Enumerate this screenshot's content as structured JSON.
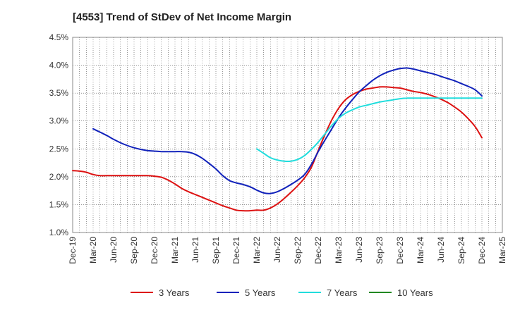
{
  "title": "[4553]  Trend of StDev of Net Income Margin",
  "chart_data": {
    "type": "line",
    "title": "[4553]  Trend of StDev of Net Income Margin",
    "xlabel": "",
    "ylabel": "",
    "ylim": [
      1.0,
      4.5
    ],
    "y_ticks": [
      "1.0%",
      "1.5%",
      "2.0%",
      "2.5%",
      "3.0%",
      "3.5%",
      "4.0%",
      "4.5%"
    ],
    "y_tick_values": [
      1.0,
      1.5,
      2.0,
      2.5,
      3.0,
      3.5,
      4.0,
      4.5
    ],
    "x_ticks": [
      "Dec-19",
      "Mar-20",
      "Jun-20",
      "Sep-20",
      "Dec-20",
      "Mar-21",
      "Jun-21",
      "Sep-21",
      "Dec-21",
      "Mar-22",
      "Jun-22",
      "Sep-22",
      "Dec-22",
      "Mar-23",
      "Jun-23",
      "Sep-23",
      "Dec-23",
      "Mar-24",
      "Jun-24",
      "Sep-24",
      "Dec-24",
      "Mar-25"
    ],
    "grid": true,
    "legend_position": "bottom",
    "series": [
      {
        "name": "3 Years",
        "color": "#dd1111",
        "x": [
          "Dec-19",
          "Jan-20",
          "Feb-20",
          "Mar-20",
          "Apr-20",
          "May-20",
          "Jun-20",
          "Jul-20",
          "Aug-20",
          "Sep-20",
          "Oct-20",
          "Nov-20",
          "Dec-20",
          "Jan-21",
          "Feb-21",
          "Mar-21",
          "Apr-21",
          "May-21",
          "Jun-21",
          "Jul-21",
          "Aug-21",
          "Sep-21",
          "Oct-21",
          "Nov-21",
          "Dec-21",
          "Jan-22",
          "Feb-22",
          "Mar-22",
          "Apr-22",
          "May-22",
          "Jun-22",
          "Jul-22",
          "Aug-22",
          "Sep-22",
          "Oct-22",
          "Nov-22",
          "Dec-22",
          "Jan-23",
          "Feb-23",
          "Mar-23",
          "Apr-23",
          "May-23",
          "Jun-23",
          "Jul-23",
          "Aug-23",
          "Sep-23",
          "Oct-23",
          "Nov-23",
          "Dec-23",
          "Jan-24",
          "Feb-24",
          "Mar-24",
          "Apr-24",
          "May-24",
          "Jun-24",
          "Jul-24",
          "Aug-24",
          "Sep-24",
          "Oct-24",
          "Nov-24",
          "Dec-24"
        ],
        "values": [
          2.11,
          2.1,
          2.08,
          2.04,
          2.02,
          2.02,
          2.02,
          2.02,
          2.02,
          2.02,
          2.02,
          2.02,
          2.01,
          1.99,
          1.94,
          1.87,
          1.79,
          1.73,
          1.68,
          1.63,
          1.58,
          1.53,
          1.48,
          1.44,
          1.4,
          1.39,
          1.39,
          1.4,
          1.4,
          1.44,
          1.51,
          1.61,
          1.72,
          1.84,
          1.98,
          2.17,
          2.47,
          2.76,
          3.02,
          3.23,
          3.38,
          3.47,
          3.53,
          3.57,
          3.59,
          3.61,
          3.61,
          3.6,
          3.59,
          3.56,
          3.53,
          3.51,
          3.48,
          3.44,
          3.39,
          3.33,
          3.25,
          3.16,
          3.04,
          2.9,
          2.7
        ]
      },
      {
        "name": "5 Years",
        "color": "#1122bb",
        "x": [
          "Mar-20",
          "Apr-20",
          "May-20",
          "Jun-20",
          "Jul-20",
          "Aug-20",
          "Sep-20",
          "Oct-20",
          "Nov-20",
          "Dec-20",
          "Jan-21",
          "Feb-21",
          "Mar-21",
          "Apr-21",
          "May-21",
          "Jun-21",
          "Jul-21",
          "Aug-21",
          "Sep-21",
          "Oct-21",
          "Nov-21",
          "Dec-21",
          "Jan-22",
          "Feb-22",
          "Mar-22",
          "Apr-22",
          "May-22",
          "Jun-22",
          "Jul-22",
          "Aug-22",
          "Sep-22",
          "Oct-22",
          "Nov-22",
          "Dec-22",
          "Jan-23",
          "Feb-23",
          "Mar-23",
          "Apr-23",
          "May-23",
          "Jun-23",
          "Jul-23",
          "Aug-23",
          "Sep-23",
          "Oct-23",
          "Nov-23",
          "Dec-23",
          "Jan-24",
          "Feb-24",
          "Mar-24",
          "Apr-24",
          "May-24",
          "Jun-24",
          "Jul-24",
          "Aug-24",
          "Sep-24",
          "Oct-24",
          "Nov-24",
          "Dec-24"
        ],
        "values": [
          2.86,
          2.8,
          2.74,
          2.67,
          2.61,
          2.56,
          2.52,
          2.49,
          2.47,
          2.46,
          2.45,
          2.45,
          2.45,
          2.45,
          2.44,
          2.4,
          2.33,
          2.24,
          2.14,
          2.02,
          1.93,
          1.89,
          1.86,
          1.82,
          1.76,
          1.71,
          1.7,
          1.73,
          1.79,
          1.86,
          1.94,
          2.04,
          2.22,
          2.45,
          2.66,
          2.86,
          3.06,
          3.23,
          3.38,
          3.52,
          3.63,
          3.73,
          3.81,
          3.87,
          3.91,
          3.94,
          3.95,
          3.93,
          3.9,
          3.87,
          3.84,
          3.8,
          3.76,
          3.72,
          3.67,
          3.62,
          3.56,
          3.45
        ]
      },
      {
        "name": "7 Years",
        "color": "#22dddd",
        "x": [
          "Mar-22",
          "Apr-22",
          "May-22",
          "Jun-22",
          "Jul-22",
          "Aug-22",
          "Sep-22",
          "Oct-22",
          "Nov-22",
          "Dec-22",
          "Jan-23",
          "Feb-23",
          "Mar-23",
          "Apr-23",
          "May-23",
          "Jun-23",
          "Jul-23",
          "Aug-23",
          "Sep-23",
          "Oct-23",
          "Nov-23",
          "Dec-23",
          "Jan-24",
          "Feb-24",
          "Mar-24",
          "Apr-24",
          "May-24",
          "Jun-24",
          "Jul-24",
          "Aug-24",
          "Sep-24",
          "Oct-24",
          "Nov-24",
          "Dec-24"
        ],
        "values": [
          2.5,
          2.42,
          2.34,
          2.3,
          2.28,
          2.28,
          2.31,
          2.38,
          2.49,
          2.62,
          2.77,
          2.92,
          3.05,
          3.14,
          3.2,
          3.25,
          3.28,
          3.31,
          3.34,
          3.36,
          3.38,
          3.4,
          3.41,
          3.41,
          3.41,
          3.41,
          3.41,
          3.41,
          3.41,
          3.41,
          3.41,
          3.41,
          3.41,
          3.41
        ]
      },
      {
        "name": "10 Years",
        "color": "#228822",
        "x": [],
        "values": []
      }
    ]
  }
}
